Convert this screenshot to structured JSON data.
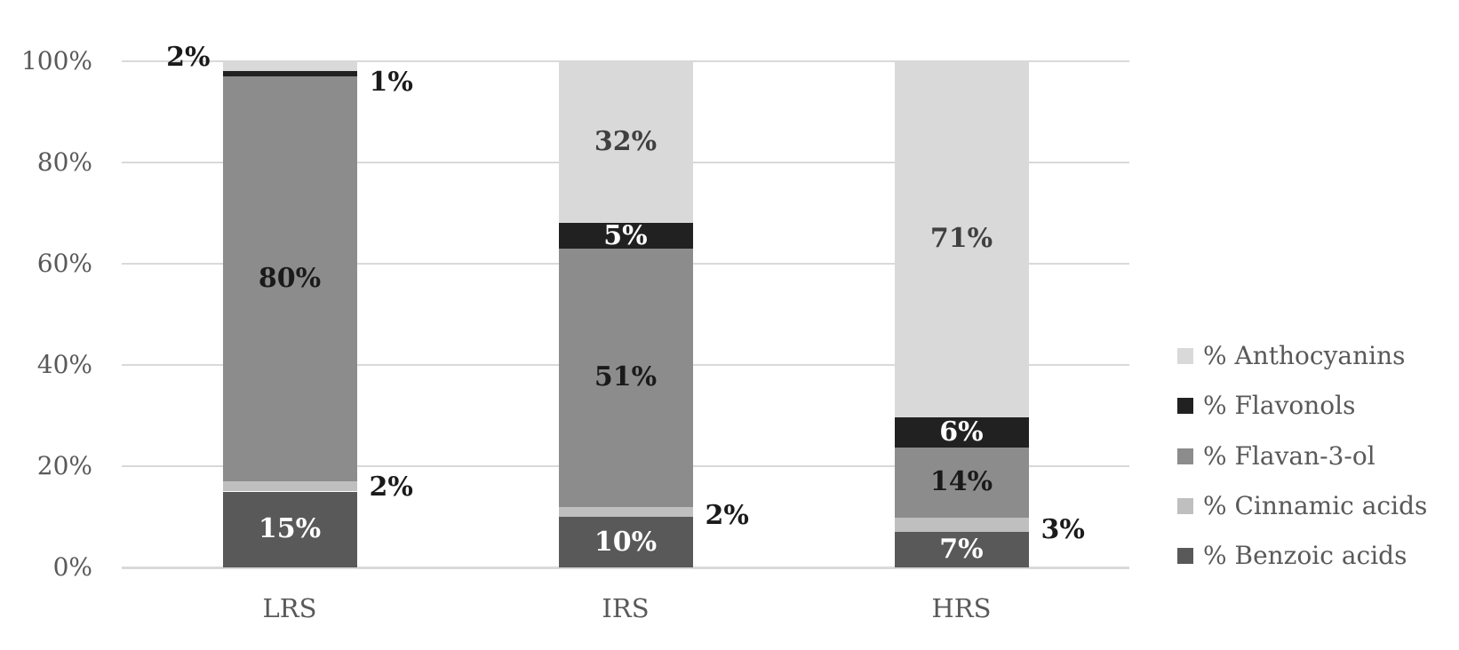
{
  "figure": {
    "background": "#ffffff",
    "grid_color": "#d9d9d9",
    "axis_text_color": "#595959"
  },
  "chart_data": {
    "type": "bar",
    "subtype": "stacked-100-vertical",
    "title": "",
    "xlabel": "",
    "ylabel": "",
    "grid": true,
    "categories": [
      "LRS",
      "IRS",
      "HRS"
    ],
    "y_axis": {
      "range": [
        0,
        100
      ],
      "ticks": [
        {
          "label": "0%",
          "value": 0
        },
        {
          "label": "20%",
          "value": 20
        },
        {
          "label": "40%",
          "value": 40
        },
        {
          "label": "60%",
          "value": 60
        },
        {
          "label": "80%",
          "value": 80
        },
        {
          "label": "100%",
          "value": 100
        }
      ]
    },
    "series": [
      {
        "name": "% Benzoic acids",
        "color": "#595959",
        "values": [
          15,
          10,
          7
        ],
        "labels": [
          {
            "text": "15%",
            "pos": "inside",
            "color": "#ffffff"
          },
          {
            "text": "10%",
            "pos": "inside",
            "color": "#ffffff"
          },
          {
            "text": "7%",
            "pos": "inside",
            "color": "#ffffff"
          }
        ]
      },
      {
        "name": "% Cinnamic acids",
        "color": "#bfbfbf",
        "values": [
          2,
          2,
          3
        ],
        "labels": [
          {
            "text": "2%",
            "pos": "right",
            "color": "#1a1a1a",
            "dy": 1
          },
          {
            "text": "2%",
            "pos": "right",
            "color": "#1a1a1a",
            "dy": 5
          },
          {
            "text": "3%",
            "pos": "right",
            "color": "#1a1a1a",
            "dy": 6
          }
        ]
      },
      {
        "name": "% Flavan-3-ol",
        "color": "#8c8c8c",
        "values": [
          80,
          51,
          14
        ],
        "labels": [
          {
            "text": "80%",
            "pos": "inside",
            "color": "#1a1a1a"
          },
          {
            "text": "51%",
            "pos": "inside",
            "color": "#1a1a1a"
          },
          {
            "text": "14%",
            "pos": "inside",
            "color": "#1a1a1a"
          }
        ]
      },
      {
        "name": "% Flavonols",
        "color": "#212121",
        "values": [
          1,
          5,
          6
        ],
        "labels": [
          {
            "text": "1%",
            "pos": "right",
            "color": "#1a1a1a",
            "dy": 10
          },
          {
            "text": "5%",
            "pos": "inside",
            "color": "#ffffff"
          },
          {
            "text": "6%",
            "pos": "inside",
            "color": "#ffffff"
          }
        ]
      },
      {
        "name": "% Anthocyanins",
        "color": "#d9d9d9",
        "values": [
          2,
          32,
          71
        ],
        "labels": [
          {
            "text": "2%",
            "pos": "left",
            "color": "#1a1a1a",
            "dy": -10
          },
          {
            "text": "32%",
            "pos": "inside",
            "color": "#404040"
          },
          {
            "text": "71%",
            "pos": "inside",
            "color": "#404040"
          }
        ]
      }
    ],
    "legend": {
      "position": "right",
      "items": [
        {
          "label": "% Anthocyanins",
          "color": "#d9d9d9"
        },
        {
          "label": "% Flavonols",
          "color": "#212121"
        },
        {
          "label": "% Flavan-3-ol",
          "color": "#8c8c8c"
        },
        {
          "label": "% Cinnamic acids",
          "color": "#bfbfbf"
        },
        {
          "label": "% Benzoic acids",
          "color": "#595959"
        }
      ]
    }
  }
}
